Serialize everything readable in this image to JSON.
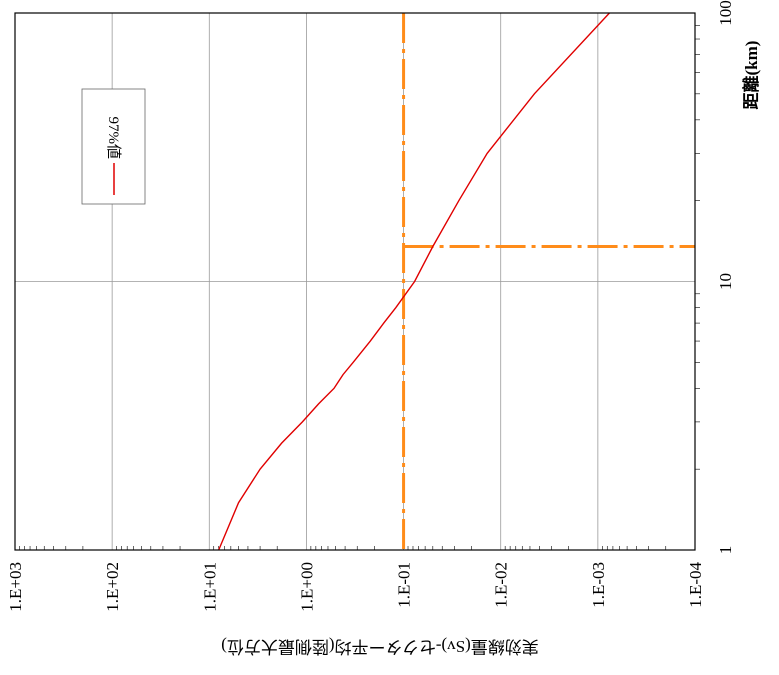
{
  "chart_data": {
    "type": "line",
    "orientation": "rotated-90-clockwise",
    "xlabel": "距離(km)",
    "ylabel": "実効線量(Sv)-セクター平均(陸側最大方位)",
    "x_scale": "log",
    "y_scale": "log",
    "xlim": [
      1,
      100
    ],
    "ylim": [
      0.0001,
      1000
    ],
    "x_ticks": [
      "1",
      "10",
      "100"
    ],
    "y_ticks": [
      "1.E-04",
      "1.E-03",
      "1.E-02",
      "1.E-01",
      "1.E+00",
      "1.E+01",
      "1.E+02",
      "1.E+03"
    ],
    "grid": true,
    "legend": {
      "position": "top-left",
      "entries": [
        "97%値"
      ]
    },
    "series": [
      {
        "name": "97%値",
        "color": "#e00000",
        "x": [
          1.0,
          1.5,
          2.0,
          2.5,
          3.0,
          3.5,
          4.0,
          4.5,
          5.0,
          6.0,
          7.0,
          8.0,
          10.0,
          13.5,
          20.0,
          30.0,
          50.0,
          100.0
        ],
        "y": [
          8.0,
          5.0,
          3.0,
          1.8,
          1.1,
          0.75,
          0.52,
          0.42,
          0.33,
          0.22,
          0.16,
          0.12,
          0.077,
          0.05,
          0.027,
          0.0138,
          0.0045,
          0.00076
        ]
      }
    ],
    "reference_lines": [
      {
        "axis": "y",
        "value": 0.1,
        "color": "#ff8c1a"
      },
      {
        "axis": "x",
        "value": 13.5,
        "color": "#ff8c1a"
      }
    ]
  }
}
